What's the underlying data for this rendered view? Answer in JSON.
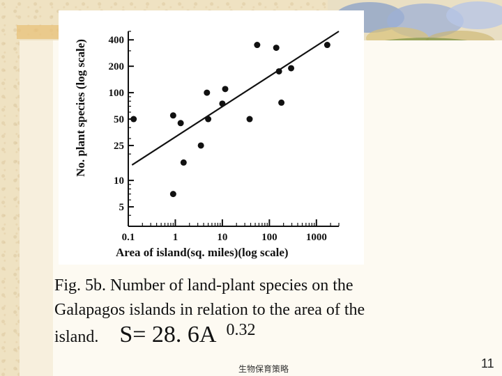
{
  "chart_data": {
    "type": "scatter",
    "title": "",
    "xlabel": "Area of island(sq. miles)(log scale)",
    "ylabel": "No. plant species (log scale)",
    "x_scale": "log",
    "y_scale": "log",
    "xlim": [
      0.1,
      3000
    ],
    "ylim": [
      3,
      500
    ],
    "x_tick_labels": [
      "0.1",
      "1",
      "10",
      "100",
      "1000"
    ],
    "x_tick_values": [
      0.1,
      1,
      10,
      100,
      1000
    ],
    "y_tick_labels": [
      "5",
      "10",
      "25",
      "50",
      "100",
      "200",
      "400"
    ],
    "y_tick_values": [
      5,
      10,
      25,
      50,
      100,
      200,
      400
    ],
    "grid": false,
    "series": [
      {
        "points": [
          [
            0.13,
            50
          ],
          [
            0.9,
            55
          ],
          [
            0.9,
            7
          ],
          [
            1.3,
            45
          ],
          [
            1.5,
            16
          ],
          [
            3.5,
            25
          ],
          [
            4.7,
            100
          ],
          [
            5,
            50
          ],
          [
            10,
            75
          ],
          [
            11.5,
            110
          ],
          [
            38,
            50
          ],
          [
            55,
            350
          ],
          [
            140,
            325
          ],
          [
            160,
            175
          ],
          [
            180,
            77
          ],
          [
            290,
            190
          ],
          [
            1700,
            350
          ]
        ]
      }
    ],
    "fit_line": {
      "x": [
        0.12,
        3000
      ],
      "y": [
        15,
        500
      ]
    }
  },
  "caption": {
    "line1": "Fig. 5b. Number of land-plant species on the",
    "line2": "Galapagos islands in relation to the area of the",
    "line3": "island.",
    "formula": "S= 28. 6A",
    "formula_exponent": "0.32"
  },
  "footer_text": "生物保育策略",
  "page_number": "11",
  "colors": {
    "background": "#efe2c2",
    "panel": "#fdfaf2",
    "ink": "#111111",
    "accent_bar": "#e8c27a"
  }
}
